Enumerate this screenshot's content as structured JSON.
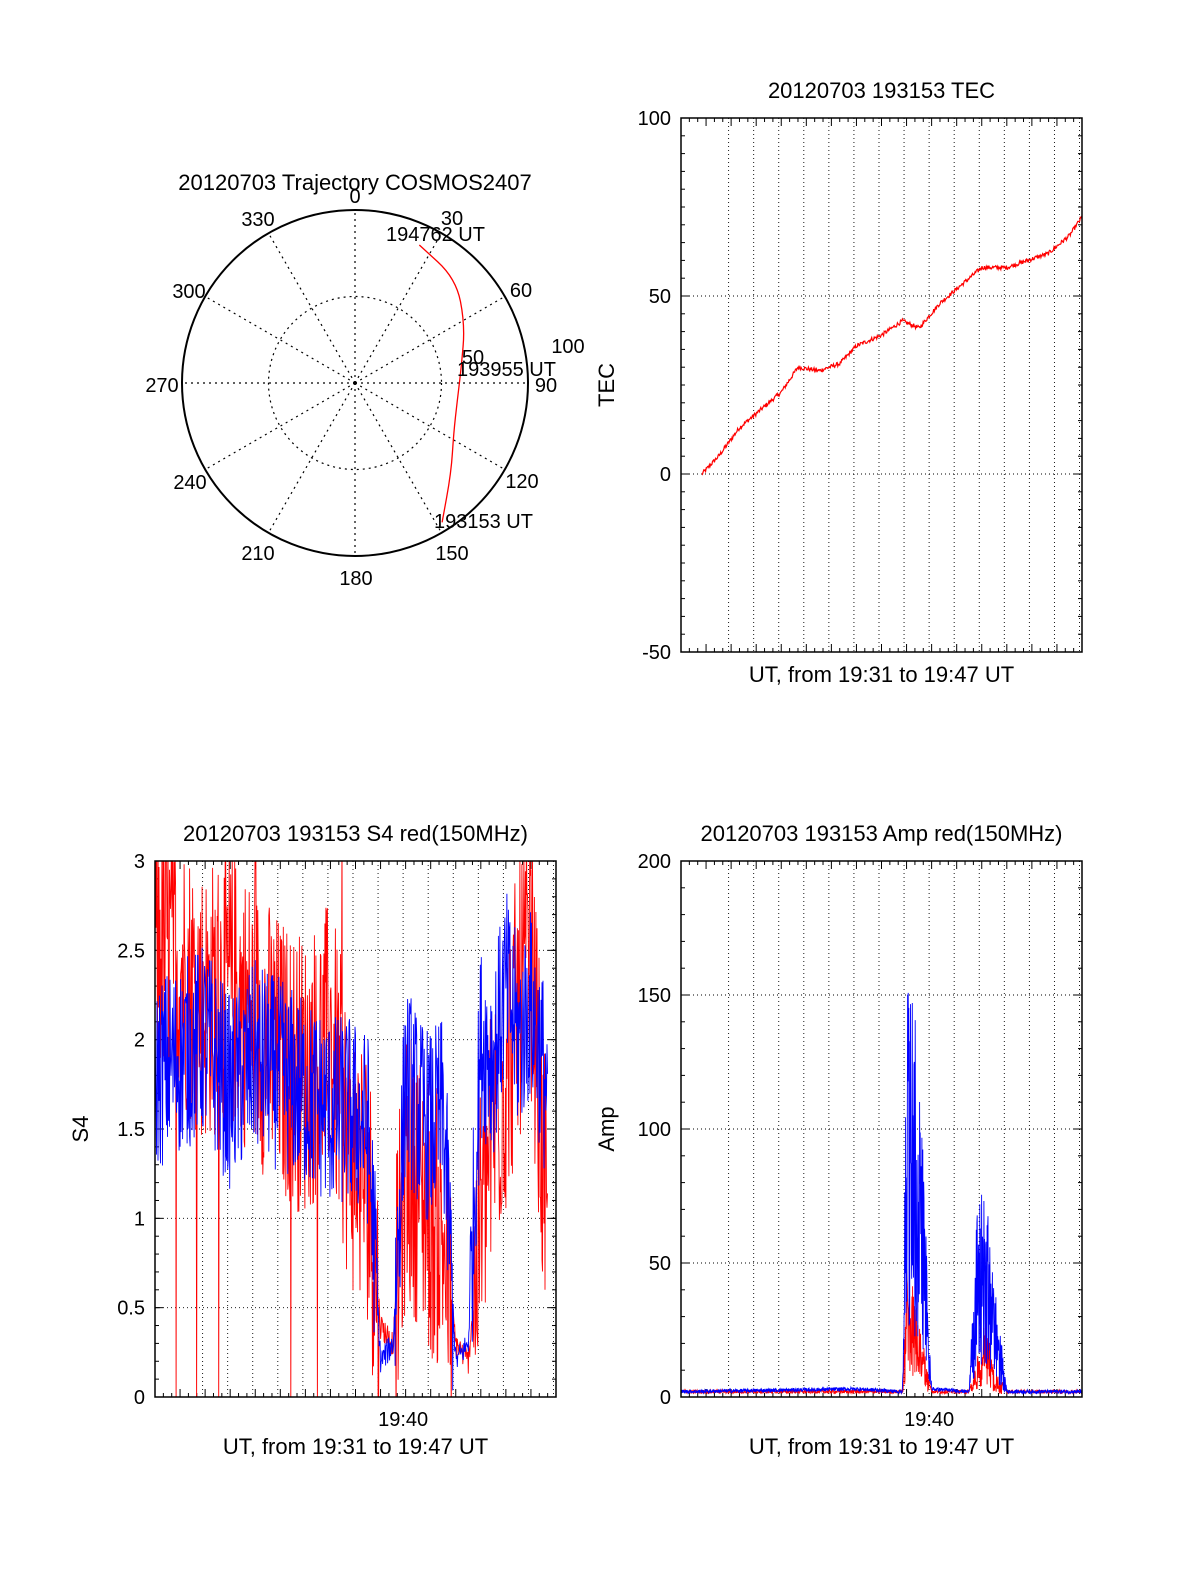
{
  "chart_data": [
    {
      "type": "polar",
      "title": "20120703 Trajectory COSMOS2407",
      "angle_labels": [
        "0",
        "30",
        "60",
        "90",
        "120",
        "150",
        "180",
        "210",
        "240",
        "270",
        "300",
        "330"
      ],
      "radial_labels": [
        "50",
        "100"
      ],
      "r_max": 100,
      "grid": true,
      "series": [
        {
          "color": "#ff0000",
          "points": [
            {
              "az": 148,
              "r": 95
            },
            {
              "az": 133,
              "r": 76
            },
            {
              "az": 117,
              "r": 64
            },
            {
              "az": 100,
              "r": 60
            },
            {
              "az": 82,
              "r": 62
            },
            {
              "az": 62,
              "r": 72
            },
            {
              "az": 44,
              "r": 84
            },
            {
              "az": 25,
              "r": 88
            }
          ]
        }
      ],
      "annotations": [
        {
          "text": "194762 UT",
          "at": "end"
        },
        {
          "text": "193955 UT",
          "at": "middle"
        },
        {
          "text": "193153 UT",
          "at": "start"
        }
      ]
    },
    {
      "type": "line",
      "title": "20120703 193153 TEC",
      "xlabel": "UT, from 19:31 to 19:47 UT",
      "ylabel": "TEC",
      "ylim": [
        -50,
        100
      ],
      "yticks": [
        "-50",
        "0",
        "50",
        "100"
      ],
      "xlim": [
        "19:31",
        "19:47"
      ],
      "grid": true,
      "series": [
        {
          "color": "#ff0000",
          "x": [
            "19:31:50",
            "19:32:30",
            "19:33:20",
            "19:34:00",
            "19:35:00",
            "19:35:40",
            "19:36:30",
            "19:37:20",
            "19:38:00",
            "19:39:00",
            "19:39:50",
            "19:40:30",
            "19:41:20",
            "19:42:00",
            "19:43:00",
            "19:44:00",
            "19:44:50",
            "19:45:40",
            "19:46:30",
            "19:47:10"
          ],
          "y": [
            0,
            5,
            13,
            17,
            23,
            30,
            29,
            31,
            36,
            39,
            43,
            41,
            48,
            52,
            58,
            58,
            60,
            62,
            67,
            74
          ]
        }
      ]
    },
    {
      "type": "line",
      "title": "20120703 193153 S4 red(150MHz)",
      "xlabel": "UT, from 19:31 to 19:47 UT",
      "ylabel": "S4",
      "ylim": [
        0,
        3
      ],
      "yticks": [
        "0",
        "0.5",
        "1",
        "1.5",
        "2",
        "2.5",
        "3"
      ],
      "xticks": [
        "19:40"
      ],
      "grid": true,
      "series": [
        {
          "color": "#ff0000",
          "x": [
            "19:31:00",
            "19:32:00",
            "19:33:00",
            "19:34:00",
            "19:35:00",
            "19:36:00",
            "19:37:00",
            "19:38:00",
            "19:38:45",
            "19:39:30",
            "19:40:00",
            "19:40:30",
            "19:41:00",
            "19:41:30",
            "19:42:00",
            "19:42:30",
            "19:43:00",
            "19:43:30",
            "19:44:00",
            "19:44:30",
            "19:45:00",
            "19:45:30",
            "19:46:00",
            "19:46:40"
          ],
          "y": [
            2.6,
            2.4,
            2.2,
            2.3,
            2.1,
            1.9,
            1.8,
            2.0,
            1.4,
            1.2,
            0.4,
            0.3,
            1.3,
            1.2,
            1.0,
            0.9,
            0.3,
            0.2,
            1.0,
            1.5,
            1.8,
            2.2,
            2.5,
            0.8
          ]
        },
        {
          "color": "#0000ff",
          "x": [
            "19:31:00",
            "19:32:00",
            "19:33:00",
            "19:34:00",
            "19:35:00",
            "19:36:00",
            "19:37:00",
            "19:38:00",
            "19:38:45",
            "19:39:30",
            "19:40:00",
            "19:40:30",
            "19:41:00",
            "19:41:30",
            "19:42:00",
            "19:42:30",
            "19:43:00",
            "19:43:30",
            "19:44:00",
            "19:44:30",
            "19:45:00",
            "19:45:30",
            "19:46:00",
            "19:46:40"
          ],
          "y": [
            1.8,
            1.9,
            2.0,
            1.7,
            1.9,
            1.8,
            1.7,
            1.6,
            1.6,
            1.5,
            0.2,
            0.3,
            1.8,
            1.6,
            1.5,
            1.6,
            0.2,
            0.3,
            2.0,
            1.9,
            2.3,
            2.0,
            2.2,
            1.7
          ]
        }
      ]
    },
    {
      "type": "line",
      "title": "20120703 193153 Amp red(150MHz)",
      "xlabel": "UT, from 19:31 to 19:47 UT",
      "ylabel": "Amp",
      "ylim": [
        0,
        200
      ],
      "yticks": [
        "0",
        "50",
        "100",
        "150",
        "200"
      ],
      "xticks": [
        "19:40"
      ],
      "grid": true,
      "series": [
        {
          "color": "#ff0000",
          "x": [
            "19:31:00",
            "19:38:00",
            "19:39:50",
            "19:40:00",
            "19:40:20",
            "19:40:40",
            "19:41:00",
            "19:42:30",
            "19:42:50",
            "19:43:10",
            "19:43:30",
            "19:44:00",
            "19:47:00"
          ],
          "y": [
            2,
            2,
            2,
            50,
            38,
            20,
            2,
            2,
            15,
            30,
            10,
            2,
            2
          ]
        },
        {
          "color": "#0000ff",
          "x": [
            "19:31:00",
            "19:38:00",
            "19:39:50",
            "19:40:00",
            "19:40:20",
            "19:40:40",
            "19:41:00",
            "19:42:30",
            "19:42:50",
            "19:43:10",
            "19:43:30",
            "19:44:00",
            "19:47:00"
          ],
          "y": [
            2,
            3,
            2,
            157,
            145,
            90,
            3,
            2,
            82,
            75,
            45,
            2,
            2
          ]
        }
      ]
    }
  ]
}
